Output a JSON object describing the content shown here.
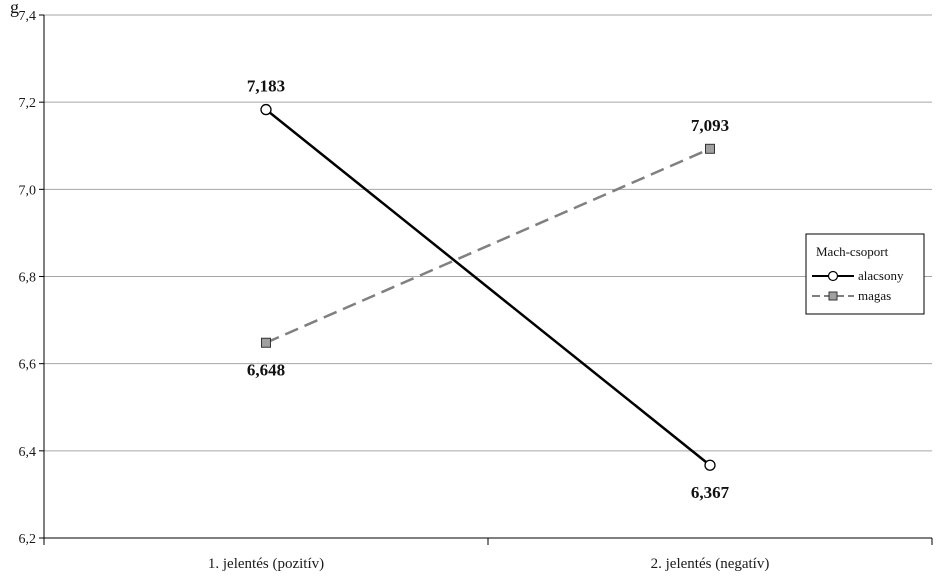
{
  "chart_data": {
    "type": "line",
    "title": "",
    "xlabel": "",
    "ylabel": "g",
    "categories": [
      "1. jelentés (pozitív)",
      "2. jelentés (negatív)"
    ],
    "ylim": [
      6.2,
      7.4
    ],
    "yticks": [
      "6,2",
      "6,4",
      "6,6",
      "6,8",
      "7,0",
      "7,2",
      "7,4"
    ],
    "grid": true,
    "legend": {
      "title": "Mach-csoport",
      "position": "right"
    },
    "series": [
      {
        "name": "alacsony",
        "values": [
          7.183,
          6.367
        ],
        "labels": [
          "7,183",
          "6,367"
        ],
        "color": "#000000",
        "line_style": "solid",
        "marker": "circle"
      },
      {
        "name": "magas",
        "values": [
          6.648,
          7.093
        ],
        "labels": [
          "6,648",
          "7,093"
        ],
        "color": "#808080",
        "line_style": "dashed",
        "marker": "square"
      }
    ]
  }
}
